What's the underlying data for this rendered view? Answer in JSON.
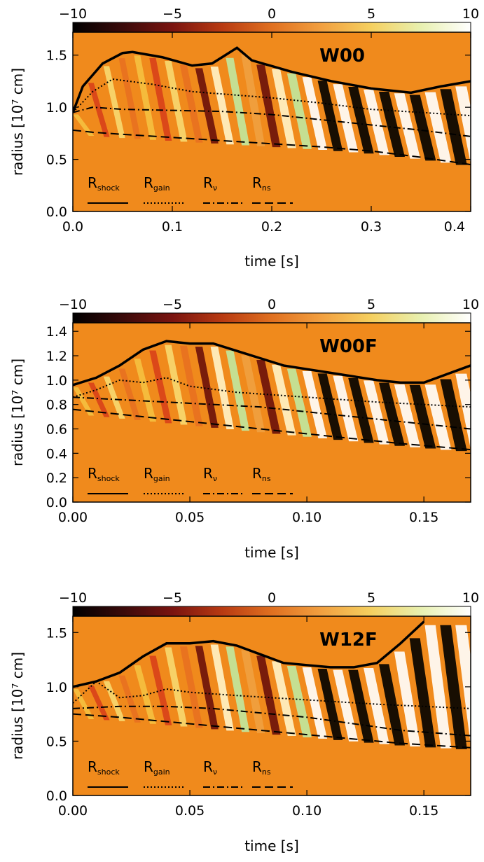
{
  "colorbar": {
    "ticks": [
      "−10",
      "−5",
      "0",
      "5",
      "10"
    ],
    "range": [
      -10,
      10
    ],
    "colors": [
      "#000000",
      "#3a0a0a",
      "#7a1410",
      "#b83a12",
      "#e07020",
      "#f2a040",
      "#f5d060",
      "#e8f0b0",
      "#ffffff"
    ]
  },
  "background_color": "#f08a1c",
  "chart_data": [
    {
      "type": "heatmap",
      "model": "W00",
      "xlabel": "time [s]",
      "ylabel": "radius [10⁷ cm]",
      "x_ticks": [
        "0.0",
        "0.1",
        "0.2",
        "0.3",
        "0.4"
      ],
      "y_ticks": [
        "0.0",
        "0.5",
        "1.0",
        "1.5"
      ],
      "xlim": [
        0.0,
        0.4
      ],
      "ylim": [
        0.0,
        1.72
      ],
      "legend": [
        "R",
        "R",
        "R",
        "R"
      ],
      "legend_sub": [
        "shock",
        "gain",
        "ν",
        "ns"
      ],
      "series": [
        {
          "name": "R_shock",
          "style": "solid-thick",
          "x": [
            0.0,
            0.01,
            0.03,
            0.05,
            0.06,
            0.09,
            0.12,
            0.14,
            0.15,
            0.165,
            0.18,
            0.22,
            0.26,
            0.3,
            0.34,
            0.37,
            0.4
          ],
          "y": [
            0.95,
            1.2,
            1.42,
            1.52,
            1.53,
            1.48,
            1.4,
            1.42,
            1.48,
            1.57,
            1.45,
            1.34,
            1.25,
            1.18,
            1.14,
            1.2,
            1.25
          ]
        },
        {
          "name": "R_gain",
          "style": "dotted",
          "x": [
            0.0,
            0.02,
            0.04,
            0.08,
            0.12,
            0.16,
            0.2,
            0.25,
            0.3,
            0.35,
            0.4
          ],
          "y": [
            0.95,
            1.15,
            1.27,
            1.22,
            1.15,
            1.12,
            1.09,
            1.04,
            0.98,
            0.95,
            0.92
          ]
        },
        {
          "name": "R_nu",
          "style": "dash-dot",
          "x": [
            0.0,
            0.02,
            0.05,
            0.1,
            0.15,
            0.2,
            0.25,
            0.3,
            0.35,
            0.4
          ],
          "y": [
            0.95,
            1.0,
            0.98,
            0.97,
            0.96,
            0.93,
            0.88,
            0.83,
            0.78,
            0.72
          ]
        },
        {
          "name": "R_ns",
          "style": "dashed",
          "x": [
            0.0,
            0.02,
            0.05,
            0.1,
            0.15,
            0.2,
            0.25,
            0.3,
            0.35,
            0.4
          ],
          "y": [
            0.78,
            0.76,
            0.74,
            0.71,
            0.68,
            0.65,
            0.62,
            0.58,
            0.52,
            0.45
          ]
        }
      ]
    },
    {
      "type": "heatmap",
      "model": "W00F",
      "xlabel": "time [s]",
      "ylabel": "radius [10⁷ cm]",
      "x_ticks": [
        "0.00",
        "0.05",
        "0.10",
        "0.15"
      ],
      "y_ticks": [
        "0.0",
        "0.2",
        "0.4",
        "0.6",
        "0.8",
        "1.0",
        "1.2",
        "1.4"
      ],
      "xlim": [
        0.0,
        0.17
      ],
      "ylim": [
        0.0,
        1.47
      ],
      "legend": [
        "R",
        "R",
        "R",
        "R"
      ],
      "legend_sub": [
        "shock",
        "gain",
        "ν",
        "ns"
      ],
      "series": [
        {
          "name": "R_shock",
          "style": "solid-thick",
          "x": [
            0.0,
            0.01,
            0.02,
            0.03,
            0.04,
            0.05,
            0.06,
            0.07,
            0.08,
            0.09,
            0.1,
            0.11,
            0.12,
            0.13,
            0.14,
            0.15,
            0.16,
            0.17
          ],
          "y": [
            0.96,
            1.02,
            1.12,
            1.25,
            1.32,
            1.3,
            1.3,
            1.24,
            1.18,
            1.12,
            1.09,
            1.06,
            1.03,
            1.0,
            0.98,
            0.98,
            1.05,
            1.12
          ]
        },
        {
          "name": "R_gain",
          "style": "dotted",
          "x": [
            0.0,
            0.01,
            0.02,
            0.03,
            0.04,
            0.05,
            0.07,
            0.1,
            0.13,
            0.15,
            0.17
          ],
          "y": [
            0.86,
            0.92,
            1.0,
            0.98,
            1.02,
            0.95,
            0.9,
            0.86,
            0.82,
            0.8,
            0.78
          ]
        },
        {
          "name": "R_nu",
          "style": "dash-dot",
          "x": [
            0.0,
            0.02,
            0.04,
            0.06,
            0.08,
            0.1,
            0.12,
            0.14,
            0.17
          ],
          "y": [
            0.86,
            0.84,
            0.82,
            0.8,
            0.78,
            0.74,
            0.7,
            0.66,
            0.6
          ]
        },
        {
          "name": "R_ns",
          "style": "dashed",
          "x": [
            0.0,
            0.02,
            0.04,
            0.06,
            0.08,
            0.1,
            0.12,
            0.14,
            0.17
          ],
          "y": [
            0.76,
            0.72,
            0.68,
            0.64,
            0.6,
            0.56,
            0.52,
            0.48,
            0.43
          ]
        }
      ]
    },
    {
      "type": "heatmap",
      "model": "W12F",
      "xlabel": "time [s]",
      "ylabel": "radius [10⁷ cm]",
      "x_ticks": [
        "0.00",
        "0.05",
        "0.10",
        "0.15"
      ],
      "y_ticks": [
        "0.0",
        "0.5",
        "1.0",
        "1.5"
      ],
      "xlim": [
        0.0,
        0.17
      ],
      "ylim": [
        0.0,
        1.65
      ],
      "legend": [
        "R",
        "R",
        "R",
        "R"
      ],
      "legend_sub": [
        "shock",
        "gain",
        "ν",
        "ns"
      ],
      "series": [
        {
          "name": "R_shock",
          "style": "solid-thick",
          "x": [
            0.0,
            0.01,
            0.02,
            0.03,
            0.04,
            0.05,
            0.06,
            0.07,
            0.08,
            0.09,
            0.1,
            0.11,
            0.12,
            0.13,
            0.14,
            0.15
          ],
          "y": [
            1.0,
            1.05,
            1.13,
            1.28,
            1.4,
            1.4,
            1.42,
            1.38,
            1.3,
            1.22,
            1.2,
            1.18,
            1.18,
            1.22,
            1.4,
            1.6
          ]
        },
        {
          "name": "R_gain",
          "style": "dotted",
          "x": [
            0.0,
            0.01,
            0.02,
            0.03,
            0.04,
            0.05,
            0.07,
            0.1,
            0.13,
            0.15,
            0.17
          ],
          "y": [
            0.85,
            1.05,
            0.9,
            0.92,
            0.98,
            0.95,
            0.92,
            0.88,
            0.84,
            0.82,
            0.8
          ]
        },
        {
          "name": "R_nu",
          "style": "dash-dot",
          "x": [
            0.0,
            0.02,
            0.04,
            0.06,
            0.08,
            0.1,
            0.12,
            0.14,
            0.17
          ],
          "y": [
            0.8,
            0.82,
            0.82,
            0.8,
            0.76,
            0.72,
            0.66,
            0.6,
            0.55
          ]
        },
        {
          "name": "R_ns",
          "style": "dashed",
          "x": [
            0.0,
            0.02,
            0.04,
            0.06,
            0.08,
            0.1,
            0.12,
            0.14,
            0.17
          ],
          "y": [
            0.75,
            0.72,
            0.68,
            0.64,
            0.6,
            0.56,
            0.52,
            0.48,
            0.44
          ]
        }
      ]
    }
  ]
}
